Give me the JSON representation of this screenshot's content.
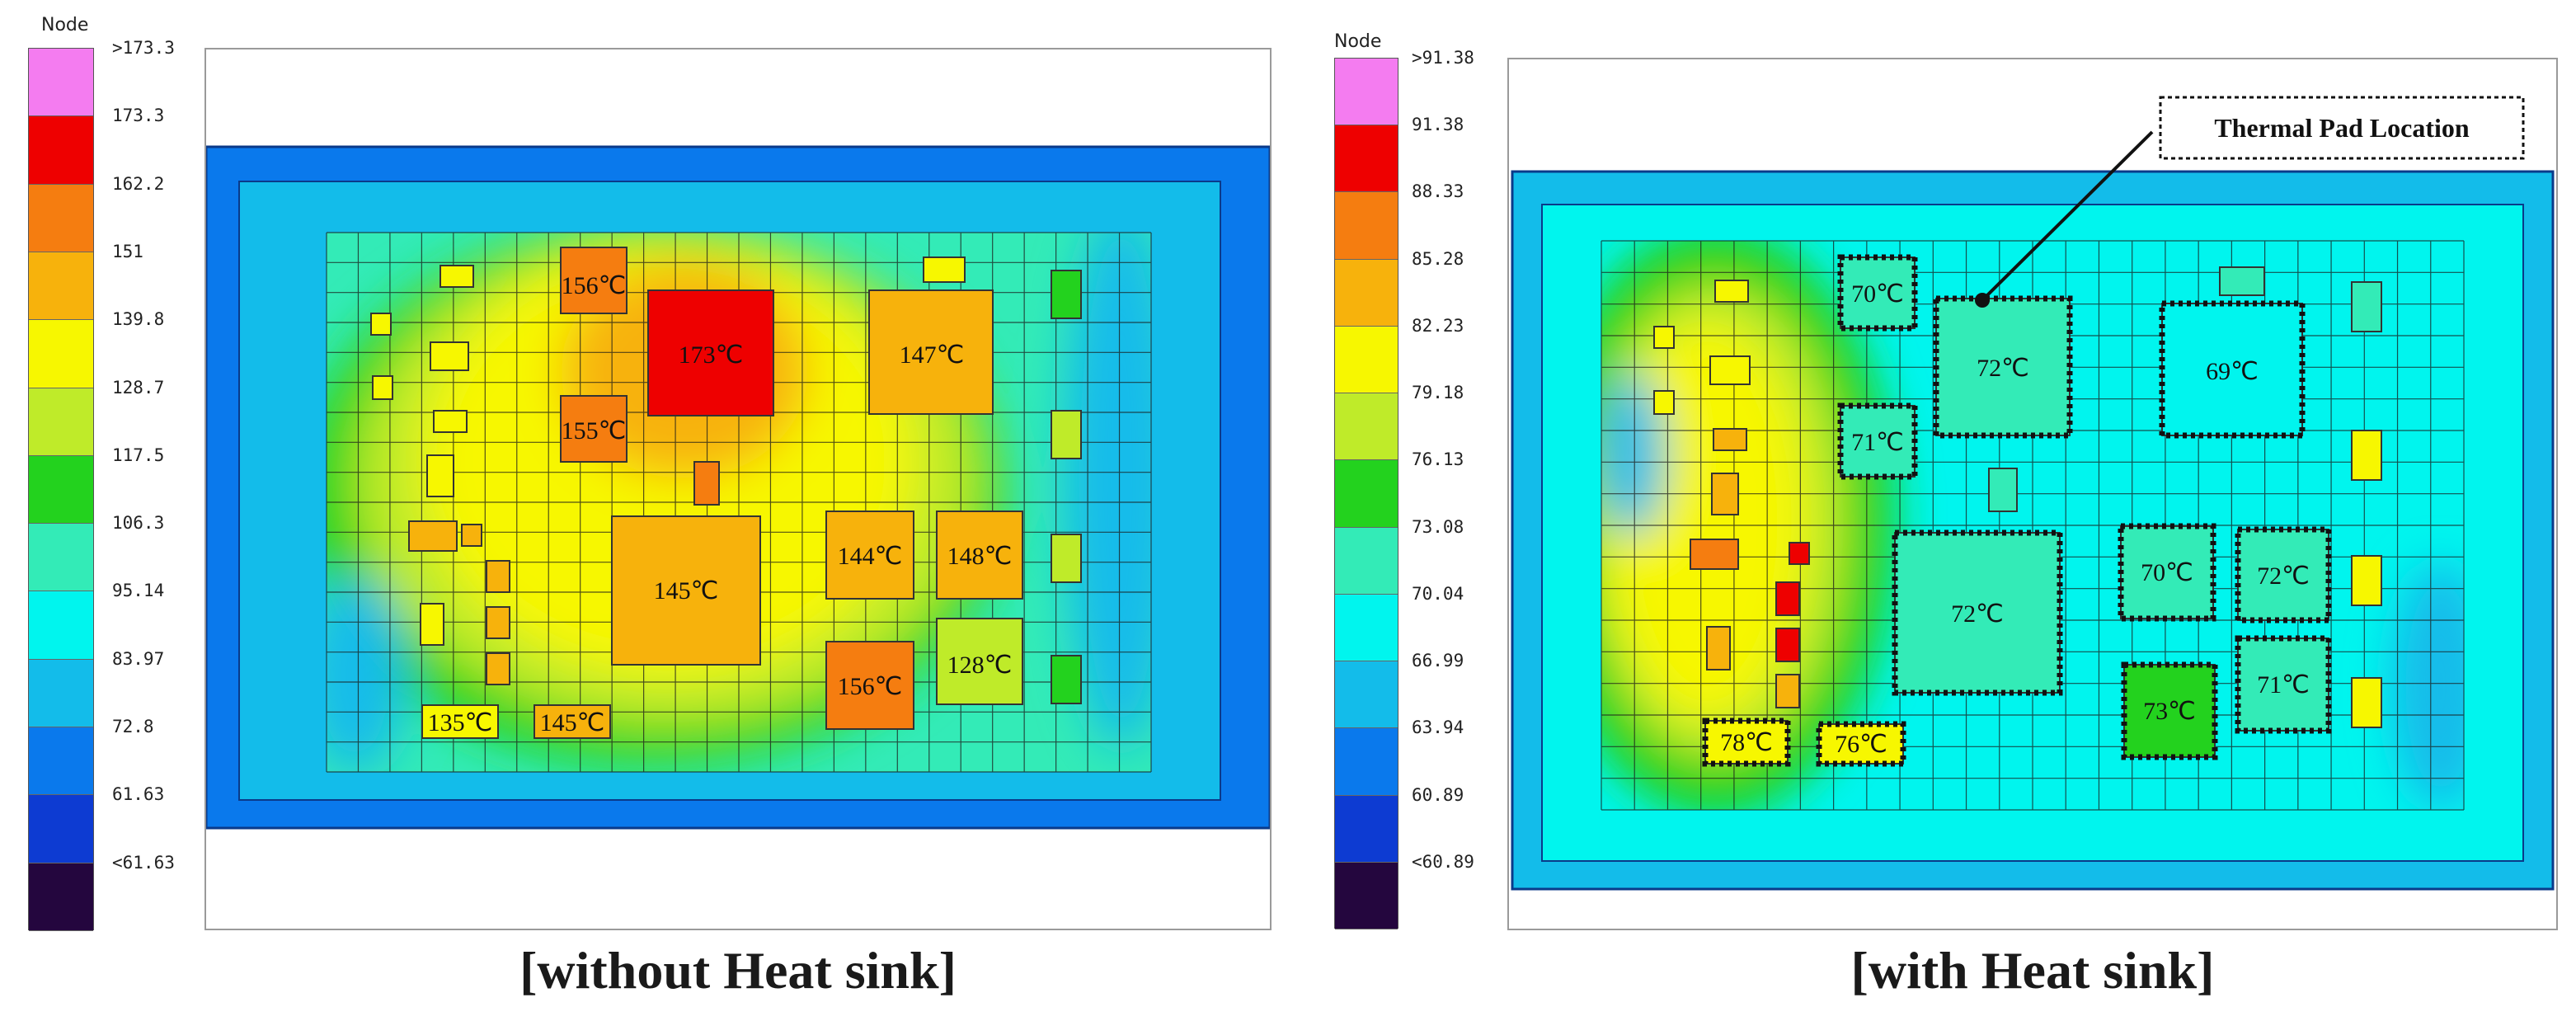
{
  "panels": [
    {
      "caption": "[without Heat sink]",
      "legend": {
        "title": "Node",
        "labels": [
          ">173.3",
          "173.3",
          "162.2",
          "151",
          "139.8",
          "128.7",
          "117.5",
          "106.3",
          "95.14",
          "83.97",
          "72.8",
          "61.63",
          "<61.63"
        ],
        "colors": [
          "#f47cf0",
          "#ee0000",
          "#f57d10",
          "#f7b20c",
          "#f7f700",
          "#bfeb29",
          "#23d21e",
          "#33ebb7",
          "#00f5ee",
          "#13bcea",
          "#0a79ec",
          "#0d3bd2",
          "#24063e"
        ]
      },
      "labels": [
        "156℃",
        "173℃",
        "147℃",
        "155℃",
        "145℃",
        "144℃",
        "148℃",
        "156℃",
        "128℃",
        "135℃",
        "145℃"
      ]
    },
    {
      "caption": "[with Heat sink]",
      "legend": {
        "title": "Node",
        "labels": [
          ">91.38",
          "91.38",
          "88.33",
          "85.28",
          "82.23",
          "79.18",
          "76.13",
          "73.08",
          "70.04",
          "66.99",
          "63.94",
          "60.89",
          "<60.89"
        ],
        "colors": [
          "#f47cf0",
          "#ee0000",
          "#f57d10",
          "#f7b20c",
          "#f7f700",
          "#bfeb29",
          "#23d21e",
          "#33ebb7",
          "#00f5ee",
          "#13bcea",
          "#0a79ec",
          "#0d3bd2",
          "#24063e"
        ]
      },
      "labels": [
        "70℃",
        "72℃",
        "69℃",
        "71℃",
        "72℃",
        "70℃",
        "72℃",
        "73℃",
        "71℃",
        "78℃",
        "76℃"
      ],
      "annotation": "Thermal Pad Location"
    }
  ]
}
